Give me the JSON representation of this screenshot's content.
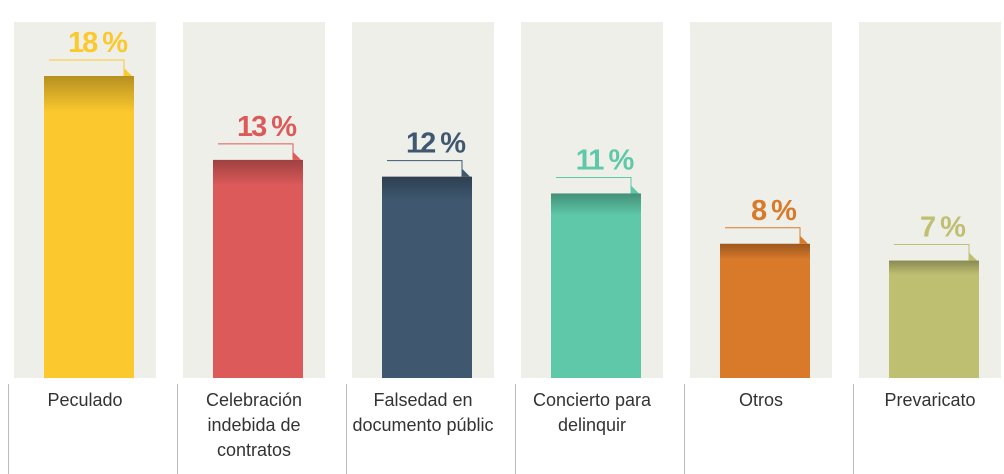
{
  "chart_data": {
    "type": "bar",
    "categories": [
      "Peculado",
      "Celebración indebida de contratos",
      "Falsedad en documento públic",
      "Concierto para delinquir",
      "Otros",
      "Prevaricato"
    ],
    "values": [
      18,
      13,
      12,
      11,
      8,
      7
    ],
    "value_labels": [
      "18 %",
      "13 %",
      "12 %",
      "11 %",
      "8 %",
      "7 %"
    ],
    "colors": [
      "#fbc82d",
      "#dd5a5a",
      "#3f5870",
      "#5ec8a8",
      "#d97a2b",
      "#bfbf72"
    ]
  }
}
